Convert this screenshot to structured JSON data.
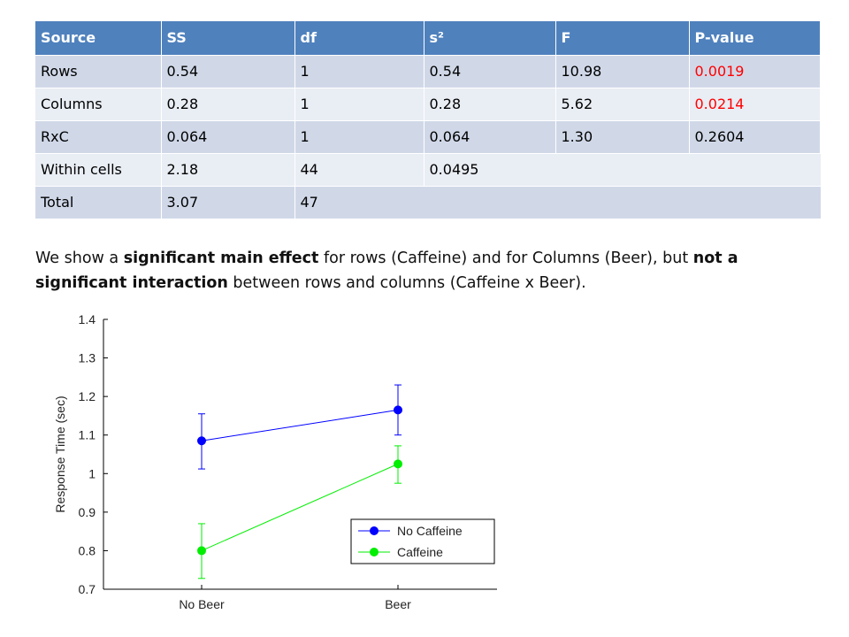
{
  "table": {
    "headers": [
      "Source",
      "SS",
      "df",
      "s²",
      "F",
      "P-value"
    ],
    "rows": [
      {
        "source": "Rows",
        "ss": "0.54",
        "df": "1",
        "s2": "0.54",
        "f": "10.98",
        "p": "0.0019"
      },
      {
        "source": "Columns",
        "ss": "0.28",
        "df": "1",
        "s2": "0.28",
        "f": "5.62",
        "p": "0.0214"
      },
      {
        "source": "RxC",
        "ss": "0.064",
        "df": "1",
        "s2": "0.064",
        "f": "1.30",
        "p": "0.2604"
      },
      {
        "source": "Within cells",
        "ss": "2.18",
        "df": "44",
        "s2": "0.0495"
      },
      {
        "source": "Total",
        "ss": "3.07",
        "df": "47"
      }
    ],
    "significant_color": "#ff0000",
    "header_color": "#4f81bd"
  },
  "caption": {
    "part1": "We show a ",
    "bold1": "significant main effect",
    "part2": " for rows (Caffeine) and for Columns (Beer), but ",
    "bold2": "not a significant interaction",
    "part3": " between rows and columns (Caffeine x Beer)."
  },
  "chart_data": {
    "type": "line",
    "categories": [
      "No Beer",
      "Beer"
    ],
    "ylabel": "Response Time (sec)",
    "ylim": [
      0.7,
      1.4
    ],
    "yticks": [
      0.7,
      0.8,
      0.9,
      1,
      1.1,
      1.2,
      1.3,
      1.4
    ],
    "ytick_labels": [
      "0.7",
      "0.8",
      "0.9",
      "1",
      "1.1",
      "1.2",
      "1.3",
      "1.4"
    ],
    "grid": false,
    "legend": "bottom-right",
    "series": [
      {
        "name": "No Caffeine",
        "color": "#0000ff",
        "values": [
          1.085,
          1.165
        ],
        "err_low": [
          1.012,
          1.1
        ],
        "err_high": [
          1.155,
          1.23
        ]
      },
      {
        "name": "Caffeine",
        "color": "#00ee00",
        "values": [
          0.8,
          1.025
        ],
        "err_low": [
          0.728,
          0.975
        ],
        "err_high": [
          0.87,
          1.072
        ]
      }
    ]
  }
}
